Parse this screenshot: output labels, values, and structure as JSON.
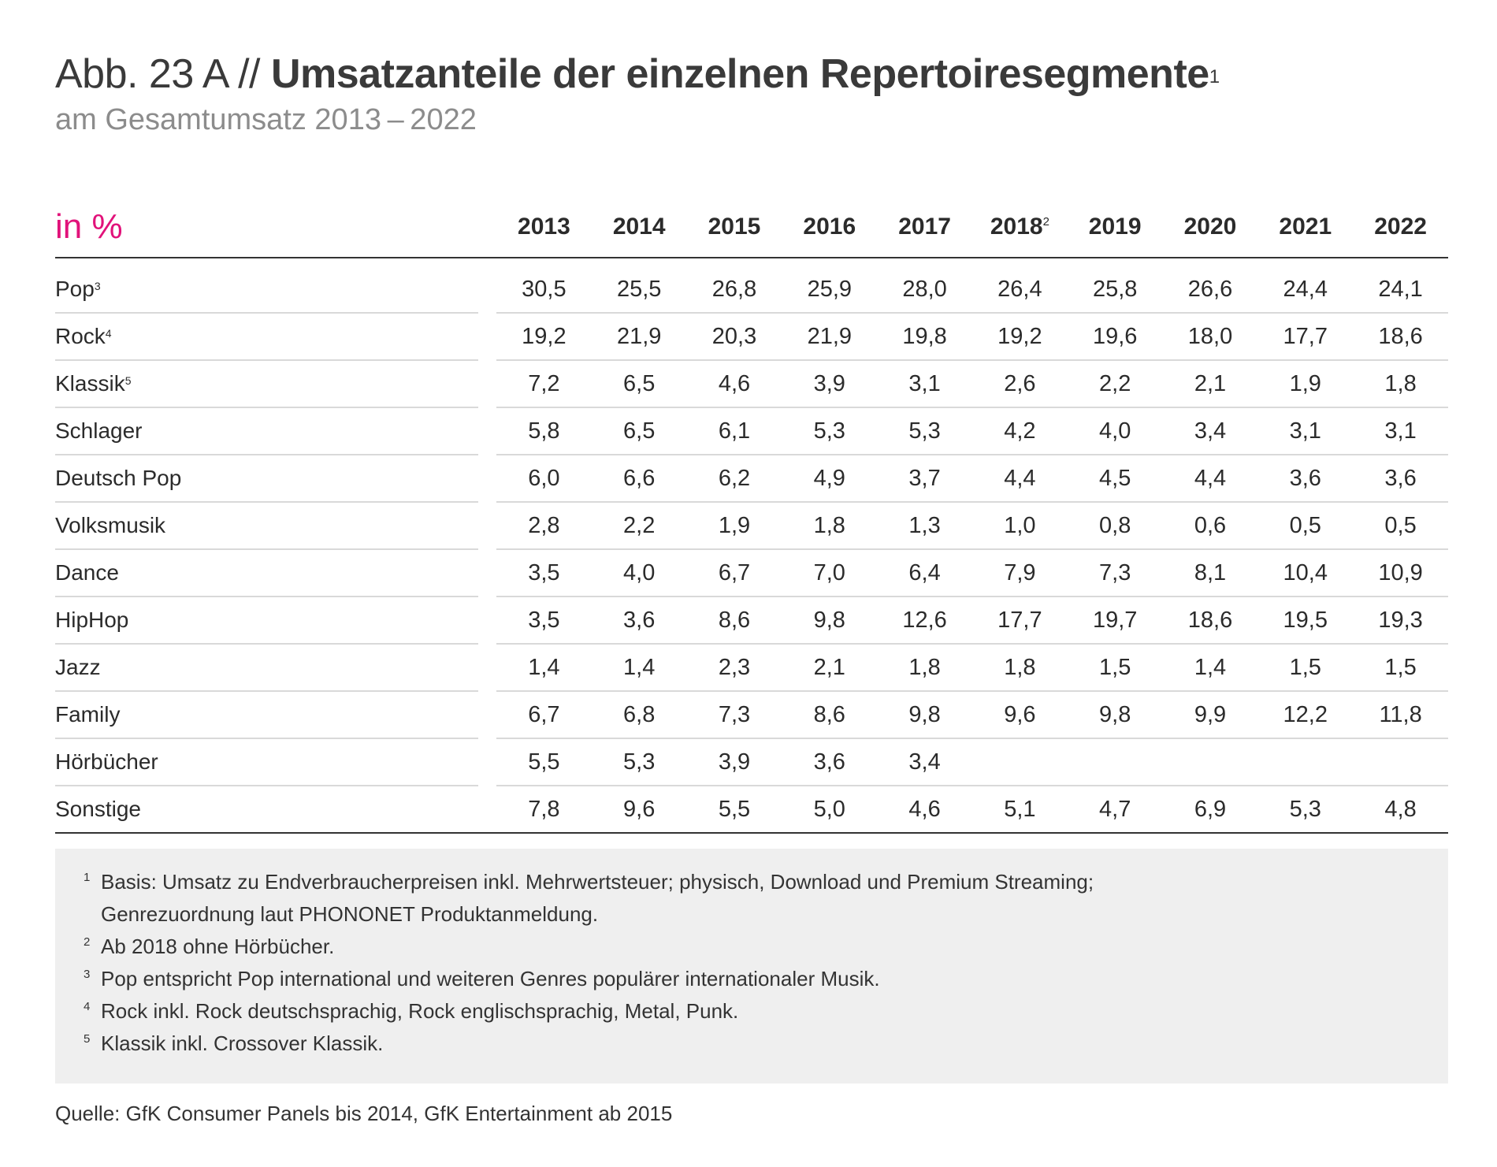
{
  "title": {
    "prefix": "Abb. 23 A // ",
    "main": "Umsatzanteile der einzelnen Repertoiresegmente",
    "main_mark": "1",
    "subtitle": "am Gesamtumsatz 2013 – 2022"
  },
  "chart_data": {
    "type": "table",
    "unit_label": "in %",
    "columns": [
      {
        "label": "2013",
        "mark": ""
      },
      {
        "label": "2014",
        "mark": ""
      },
      {
        "label": "2015",
        "mark": ""
      },
      {
        "label": "2016",
        "mark": ""
      },
      {
        "label": "2017",
        "mark": ""
      },
      {
        "label": "2018",
        "mark": "2"
      },
      {
        "label": "2019",
        "mark": ""
      },
      {
        "label": "2020",
        "mark": ""
      },
      {
        "label": "2021",
        "mark": ""
      },
      {
        "label": "2022",
        "mark": ""
      }
    ],
    "rows": [
      {
        "label": "Pop",
        "mark": "3",
        "values": [
          "30,5",
          "25,5",
          "26,8",
          "25,9",
          "28,0",
          "26,4",
          "25,8",
          "26,6",
          "24,4",
          "24,1"
        ]
      },
      {
        "label": "Rock",
        "mark": "4",
        "values": [
          "19,2",
          "21,9",
          "20,3",
          "21,9",
          "19,8",
          "19,2",
          "19,6",
          "18,0",
          "17,7",
          "18,6"
        ]
      },
      {
        "label": "Klassik",
        "mark": "5",
        "values": [
          "7,2",
          "6,5",
          "4,6",
          "3,9",
          "3,1",
          "2,6",
          "2,2",
          "2,1",
          "1,9",
          "1,8"
        ]
      },
      {
        "label": "Schlager",
        "mark": "",
        "values": [
          "5,8",
          "6,5",
          "6,1",
          "5,3",
          "5,3",
          "4,2",
          "4,0",
          "3,4",
          "3,1",
          "3,1"
        ]
      },
      {
        "label": "Deutsch Pop",
        "mark": "",
        "values": [
          "6,0",
          "6,6",
          "6,2",
          "4,9",
          "3,7",
          "4,4",
          "4,5",
          "4,4",
          "3,6",
          "3,6"
        ]
      },
      {
        "label": "Volksmusik",
        "mark": "",
        "values": [
          "2,8",
          "2,2",
          "1,9",
          "1,8",
          "1,3",
          "1,0",
          "0,8",
          "0,6",
          "0,5",
          "0,5"
        ]
      },
      {
        "label": "Dance",
        "mark": "",
        "values": [
          "3,5",
          "4,0",
          "6,7",
          "7,0",
          "6,4",
          "7,9",
          "7,3",
          "8,1",
          "10,4",
          "10,9"
        ]
      },
      {
        "label": "HipHop",
        "mark": "",
        "values": [
          "3,5",
          "3,6",
          "8,6",
          "9,8",
          "12,6",
          "17,7",
          "19,7",
          "18,6",
          "19,5",
          "19,3"
        ]
      },
      {
        "label": "Jazz",
        "mark": "",
        "values": [
          "1,4",
          "1,4",
          "2,3",
          "2,1",
          "1,8",
          "1,8",
          "1,5",
          "1,4",
          "1,5",
          "1,5"
        ]
      },
      {
        "label": "Family",
        "mark": "",
        "values": [
          "6,7",
          "6,8",
          "7,3",
          "8,6",
          "9,8",
          "9,6",
          "9,8",
          "9,9",
          "12,2",
          "11,8"
        ]
      },
      {
        "label": "Hörbücher",
        "mark": "",
        "values": [
          "5,5",
          "5,3",
          "3,9",
          "3,6",
          "3,4",
          "",
          "",
          "",
          "",
          ""
        ]
      },
      {
        "label": "Sonstige",
        "mark": "",
        "values": [
          "7,8",
          "9,6",
          "5,5",
          "5,0",
          "4,6",
          "5,1",
          "4,7",
          "6,9",
          "5,3",
          "4,8"
        ]
      }
    ]
  },
  "footnotes": [
    {
      "mark": "1",
      "lines": [
        "Basis: Umsatz zu Endverbraucherpreisen inkl. Mehrwertsteuer; physisch, Download und Premium Streaming;",
        "Genrezuordnung laut PHONONET Produktanmeldung."
      ]
    },
    {
      "mark": "2",
      "lines": [
        "Ab 2018 ohne Hörbücher."
      ]
    },
    {
      "mark": "3",
      "lines": [
        "Pop entspricht Pop international und weiteren Genres populärer internationaler Musik."
      ]
    },
    {
      "mark": "4",
      "lines": [
        "Rock inkl. Rock deutschsprachig, Rock englischsprachig, Metal, Punk."
      ]
    },
    {
      "mark": "5",
      "lines": [
        "Klassik inkl. Crossover Klassik."
      ]
    }
  ],
  "source": "Quelle: GfK Consumer Panels bis 2014, GfK Entertainment ab 2015",
  "colors": {
    "accent": "#e1127a",
    "rule": "#333333",
    "row_rule": "#d9d9d9",
    "note_bg": "#efefef"
  }
}
